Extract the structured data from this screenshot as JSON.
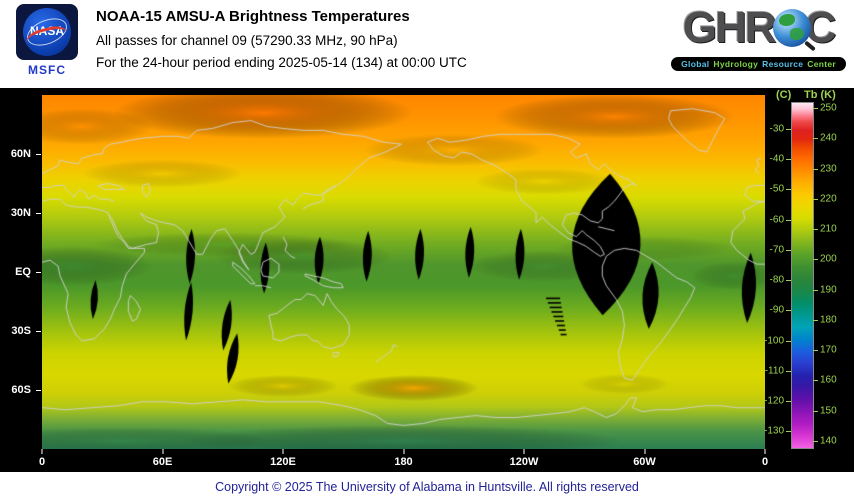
{
  "header": {
    "nasa": {
      "insignia_text": "NASA",
      "center_label": "MSFC"
    },
    "title": "NOAA-15 AMSU-A Brightness Temperatures",
    "subtitle1": "All passes for channel 09 (57290.33 MHz, 90 hPa)",
    "subtitle2": "For the 24-hour period ending 2025-05-14 (134) at 00:00 UTC",
    "ghrc": {
      "acronym_prefix": "GHR",
      "acronym_suffix": "C",
      "tagline_words": [
        {
          "text": "Global",
          "color": "#56c1e8"
        },
        {
          "text": "Hydrology",
          "color": "#7ed348"
        },
        {
          "text": "Resource",
          "color": "#56c1e8"
        },
        {
          "text": "Center",
          "color": "#7ed348"
        }
      ]
    }
  },
  "map": {
    "projection": "equirectangular",
    "lat_ticks": [
      {
        "label": "60N",
        "lat": 60
      },
      {
        "label": "30N",
        "lat": 30
      },
      {
        "label": "EQ",
        "lat": 0
      },
      {
        "label": "30S",
        "lat": -30
      },
      {
        "label": "60S",
        "lat": -60
      }
    ],
    "lon_ticks": [
      {
        "label": "0",
        "lon": 0
      },
      {
        "label": "60E",
        "lon": 60
      },
      {
        "label": "120E",
        "lon": 120
      },
      {
        "label": "180",
        "lon": 180
      },
      {
        "label": "120W",
        "lon": 240
      },
      {
        "label": "60W",
        "lon": 300
      },
      {
        "label": "0",
        "lon": 360
      }
    ]
  },
  "colorbar": {
    "celsius_header": "(C)",
    "kelvin_header": "Tb (K)",
    "celsius_ticks": [
      -30,
      -40,
      -50,
      -60,
      -70,
      -80,
      -90,
      -100,
      -110,
      -120,
      -130
    ],
    "kelvin_ticks": [
      250,
      240,
      230,
      220,
      210,
      200,
      190,
      180,
      170,
      160,
      150,
      140
    ],
    "scale_top_kelvin": 252,
    "scale_bottom_kelvin": 138
  },
  "footer": {
    "copyright": "Copyright © 2025 The University of Alabama in Huntsville.  All rights reserved"
  },
  "colors": {
    "background": "#000000",
    "header_background": "#ffffff",
    "axis_text": "#ffffff",
    "scale_text": "#9ed34f",
    "copyright_text": "#222299",
    "nasa_navy": "#0b173f",
    "msfc_blue": "#2238c8",
    "gap_black": "#000000"
  }
}
